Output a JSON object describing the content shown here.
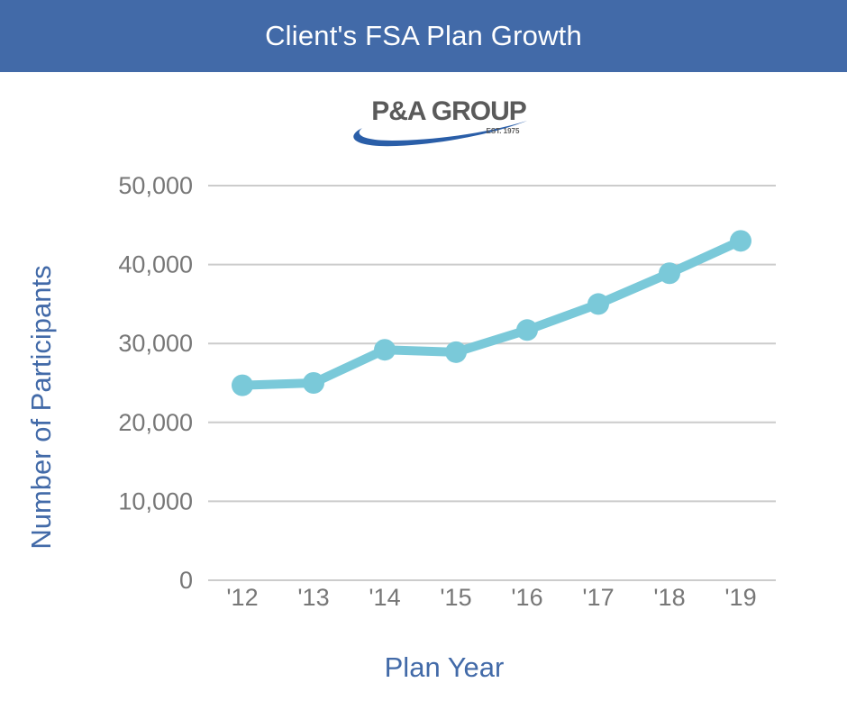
{
  "header": {
    "title": "Client's FSA Plan Growth"
  },
  "logo": {
    "name": "P&A GROUP",
    "tagline": "EST. 1975"
  },
  "colors": {
    "header_bg": "#426aa8",
    "line": "#7ac9d9",
    "axis_title": "#426aa8",
    "tick_text": "#777777",
    "grid": "#cccccc",
    "logo_text": "#5a5a5a",
    "logo_swoosh": "#2a5ea8"
  },
  "chart_data": {
    "type": "line",
    "title": "",
    "xlabel": "Plan Year",
    "ylabel": "Number of Participants",
    "categories": [
      "'12",
      "'13",
      "'14",
      "'15",
      "'16",
      "'17",
      "'18",
      "'19"
    ],
    "series": [
      {
        "values": [
          24700,
          25000,
          29200,
          28900,
          31700,
          35000,
          38900,
          43000
        ]
      }
    ],
    "ylim": [
      0,
      50000
    ],
    "yticks": [
      0,
      10000,
      20000,
      30000,
      40000,
      50000
    ],
    "ytick_labels": [
      "0",
      "10,000",
      "20,000",
      "30,000",
      "40,000",
      "50,000"
    ],
    "grid": true,
    "markers": true,
    "legend": "none"
  }
}
